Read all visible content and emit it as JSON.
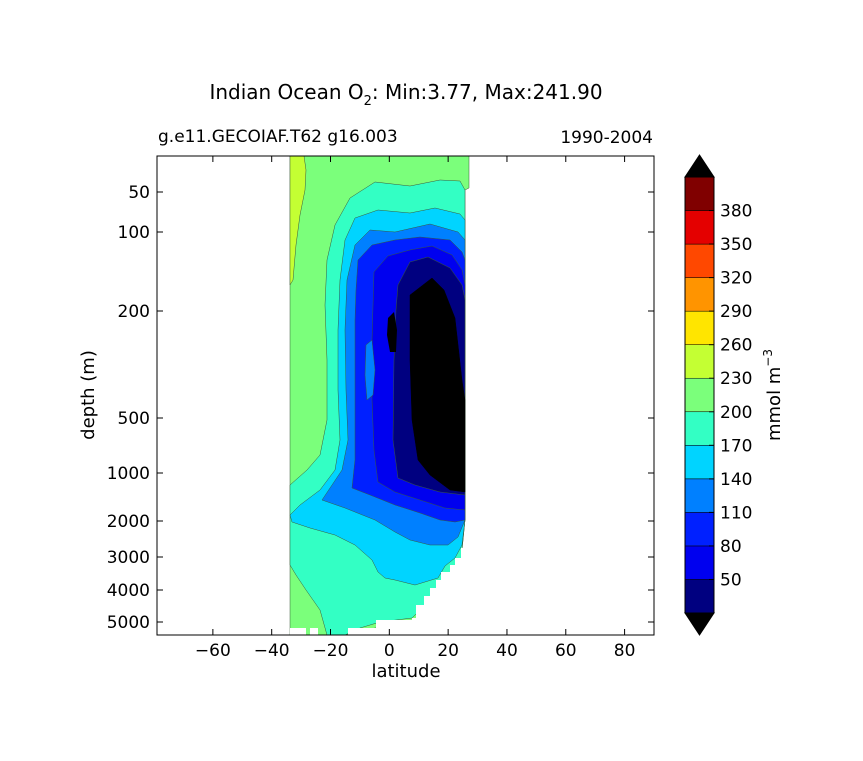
{
  "chart_data": {
    "type": "contourf",
    "title": {
      "prefix": "Indian Ocean O",
      "subscript": "2",
      "suffix": ": Min:3.77, Max:241.90"
    },
    "subtitle_left": "g.e11.GECOIAF.T62 g16.003",
    "subtitle_right": "1990-2004",
    "xlabel": "latitude",
    "ylabel": "depth (m)",
    "x_ticks": [
      "−60",
      "−40",
      "−20",
      "0",
      "20",
      "40",
      "60",
      "80"
    ],
    "x_tick_values": [
      -60,
      -40,
      -20,
      0,
      20,
      40,
      60,
      80
    ],
    "xlim": [
      -79,
      90
    ],
    "y_ticks": [
      "50",
      "100",
      "200",
      "500",
      "1000",
      "2000",
      "3000",
      "4000",
      "5000"
    ],
    "y_tick_values": [
      50,
      100,
      200,
      500,
      1000,
      2000,
      3000,
      4000,
      5000
    ],
    "colorbar": {
      "label_main": "mmol m",
      "label_exp": "−3",
      "tick_labels": [
        "50",
        "80",
        "110",
        "140",
        "170",
        "200",
        "230",
        "260",
        "290",
        "320",
        "350",
        "380"
      ],
      "levels": [
        20,
        50,
        80,
        110,
        140,
        170,
        200,
        230,
        260,
        290,
        320,
        350,
        380,
        410
      ],
      "colors": [
        "#000080",
        "#0000ef",
        "#0020ff",
        "#0080ff",
        "#00d4ff",
        "#33ffc4",
        "#7bff7b",
        "#c4ff33",
        "#ffe500",
        "#ff9400",
        "#ff4800",
        "#e40000",
        "#800000"
      ],
      "under_color": "#000000",
      "over_color": "#000000"
    },
    "data_extent": {
      "lat_min": -34,
      "lat_max": 27,
      "value_min": 3.77,
      "value_max": 241.9
    }
  }
}
